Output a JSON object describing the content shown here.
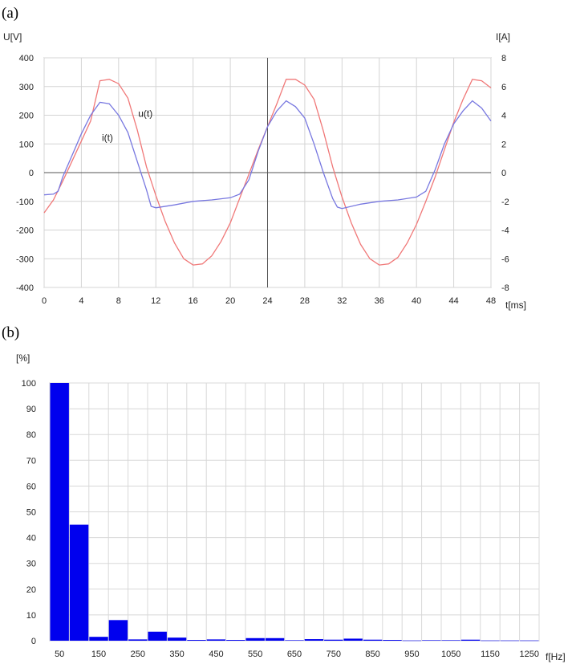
{
  "chart_data": [
    {
      "type": "line",
      "panel_label": "(a)",
      "xlabel": "t[ms]",
      "ylabel_left": "U[V]",
      "ylabel_right": "I[A]",
      "xlim": [
        0,
        48
      ],
      "ylim_left": [
        -400,
        400
      ],
      "ylim_right": [
        -8,
        8
      ],
      "x_ticks": [
        0,
        4,
        8,
        12,
        16,
        20,
        24,
        28,
        32,
        36,
        40,
        44,
        48
      ],
      "y_ticks_left": [
        -400,
        -300,
        -200,
        -100,
        0,
        100,
        200,
        300,
        400
      ],
      "y_ticks_right": [
        -8,
        -6,
        -4,
        -2,
        0,
        2,
        4,
        6,
        8
      ],
      "grid": true,
      "series": [
        {
          "name": "u(t)",
          "axis": "left",
          "color": "#f07878",
          "points": [
            [
              0,
              -140
            ],
            [
              1,
              -95
            ],
            [
              2,
              -30
            ],
            [
              3,
              40
            ],
            [
              4,
              110
            ],
            [
              5,
              180
            ],
            [
              5.5,
              250
            ],
            [
              6,
              320
            ],
            [
              7,
              325
            ],
            [
              8,
              310
            ],
            [
              9,
              260
            ],
            [
              10,
              150
            ],
            [
              11,
              20
            ],
            [
              12,
              -80
            ],
            [
              13,
              -170
            ],
            [
              14,
              -245
            ],
            [
              15,
              -300
            ],
            [
              16,
              -322
            ],
            [
              17,
              -318
            ],
            [
              18,
              -290
            ],
            [
              19,
              -240
            ],
            [
              20,
              -175
            ],
            [
              21,
              -90
            ],
            [
              22,
              -5
            ],
            [
              23,
              80
            ],
            [
              24,
              160
            ],
            [
              25,
              240
            ],
            [
              26,
              325
            ],
            [
              27,
              325
            ],
            [
              28,
              305
            ],
            [
              29,
              255
            ],
            [
              30,
              145
            ],
            [
              31,
              20
            ],
            [
              32,
              -85
            ],
            [
              33,
              -175
            ],
            [
              34,
              -250
            ],
            [
              35,
              -300
            ],
            [
              36,
              -322
            ],
            [
              37,
              -318
            ],
            [
              38,
              -295
            ],
            [
              39,
              -245
            ],
            [
              40,
              -180
            ],
            [
              41,
              -100
            ],
            [
              42,
              -15
            ],
            [
              43,
              80
            ],
            [
              44,
              175
            ],
            [
              45,
              255
            ],
            [
              46,
              325
            ],
            [
              47,
              320
            ],
            [
              48,
              295
            ]
          ]
        },
        {
          "name": "i(t)",
          "axis": "right",
          "color": "#7878e0",
          "points": [
            [
              0,
              -1.55
            ],
            [
              1,
              -1.5
            ],
            [
              1.5,
              -1.3
            ],
            [
              2,
              -0.3
            ],
            [
              3,
              1.2
            ],
            [
              4,
              2.7
            ],
            [
              5,
              4
            ],
            [
              6,
              4.9
            ],
            [
              7,
              4.8
            ],
            [
              8,
              4
            ],
            [
              9,
              2.8
            ],
            [
              10,
              0.8
            ],
            [
              11,
              -1.2
            ],
            [
              11.5,
              -2.35
            ],
            [
              12,
              -2.45
            ],
            [
              14,
              -2.25
            ],
            [
              16,
              -2.0
            ],
            [
              18,
              -1.9
            ],
            [
              20,
              -1.75
            ],
            [
              21,
              -1.5
            ],
            [
              22,
              -0.5
            ],
            [
              23,
              1.5
            ],
            [
              24,
              3.2
            ],
            [
              25,
              4.3
            ],
            [
              26,
              5.0
            ],
            [
              27,
              4.6
            ],
            [
              28,
              3.8
            ],
            [
              29,
              2.0
            ],
            [
              30,
              0
            ],
            [
              31,
              -1.8
            ],
            [
              31.5,
              -2.4
            ],
            [
              32,
              -2.5
            ],
            [
              34,
              -2.2
            ],
            [
              36,
              -2.0
            ],
            [
              38,
              -1.9
            ],
            [
              40,
              -1.7
            ],
            [
              41,
              -1.3
            ],
            [
              42,
              0.2
            ],
            [
              43,
              2.0
            ],
            [
              44,
              3.4
            ],
            [
              45,
              4.3
            ],
            [
              46,
              5.0
            ],
            [
              47,
              4.5
            ],
            [
              48,
              3.6
            ]
          ]
        }
      ]
    },
    {
      "type": "bar",
      "panel_label": "(b)",
      "xlabel": "f[Hz]",
      "ylabel": "[%]",
      "ylim": [
        0,
        100
      ],
      "y_ticks": [
        0,
        10,
        20,
        30,
        40,
        50,
        60,
        70,
        80,
        90,
        100
      ],
      "x_tick_labels": [
        "50",
        "150",
        "250",
        "350",
        "450",
        "550",
        "650",
        "750",
        "850",
        "950",
        "1050",
        "1150",
        "1250"
      ],
      "bar_color": "#0000ee",
      "grid": true,
      "categories": [
        50,
        100,
        150,
        200,
        250,
        300,
        350,
        400,
        450,
        500,
        550,
        600,
        650,
        700,
        750,
        800,
        850,
        900,
        950,
        1000,
        1050,
        1100,
        1150,
        1200,
        1250
      ],
      "values": [
        100,
        45,
        1.5,
        8,
        0.5,
        3.5,
        1.2,
        0.3,
        0.5,
        0.3,
        1,
        1,
        0.2,
        0.6,
        0.4,
        0.8,
        0.4,
        0.3,
        0.1,
        0.2,
        0.2,
        0.4,
        0.1,
        0.1,
        0.1
      ]
    }
  ]
}
